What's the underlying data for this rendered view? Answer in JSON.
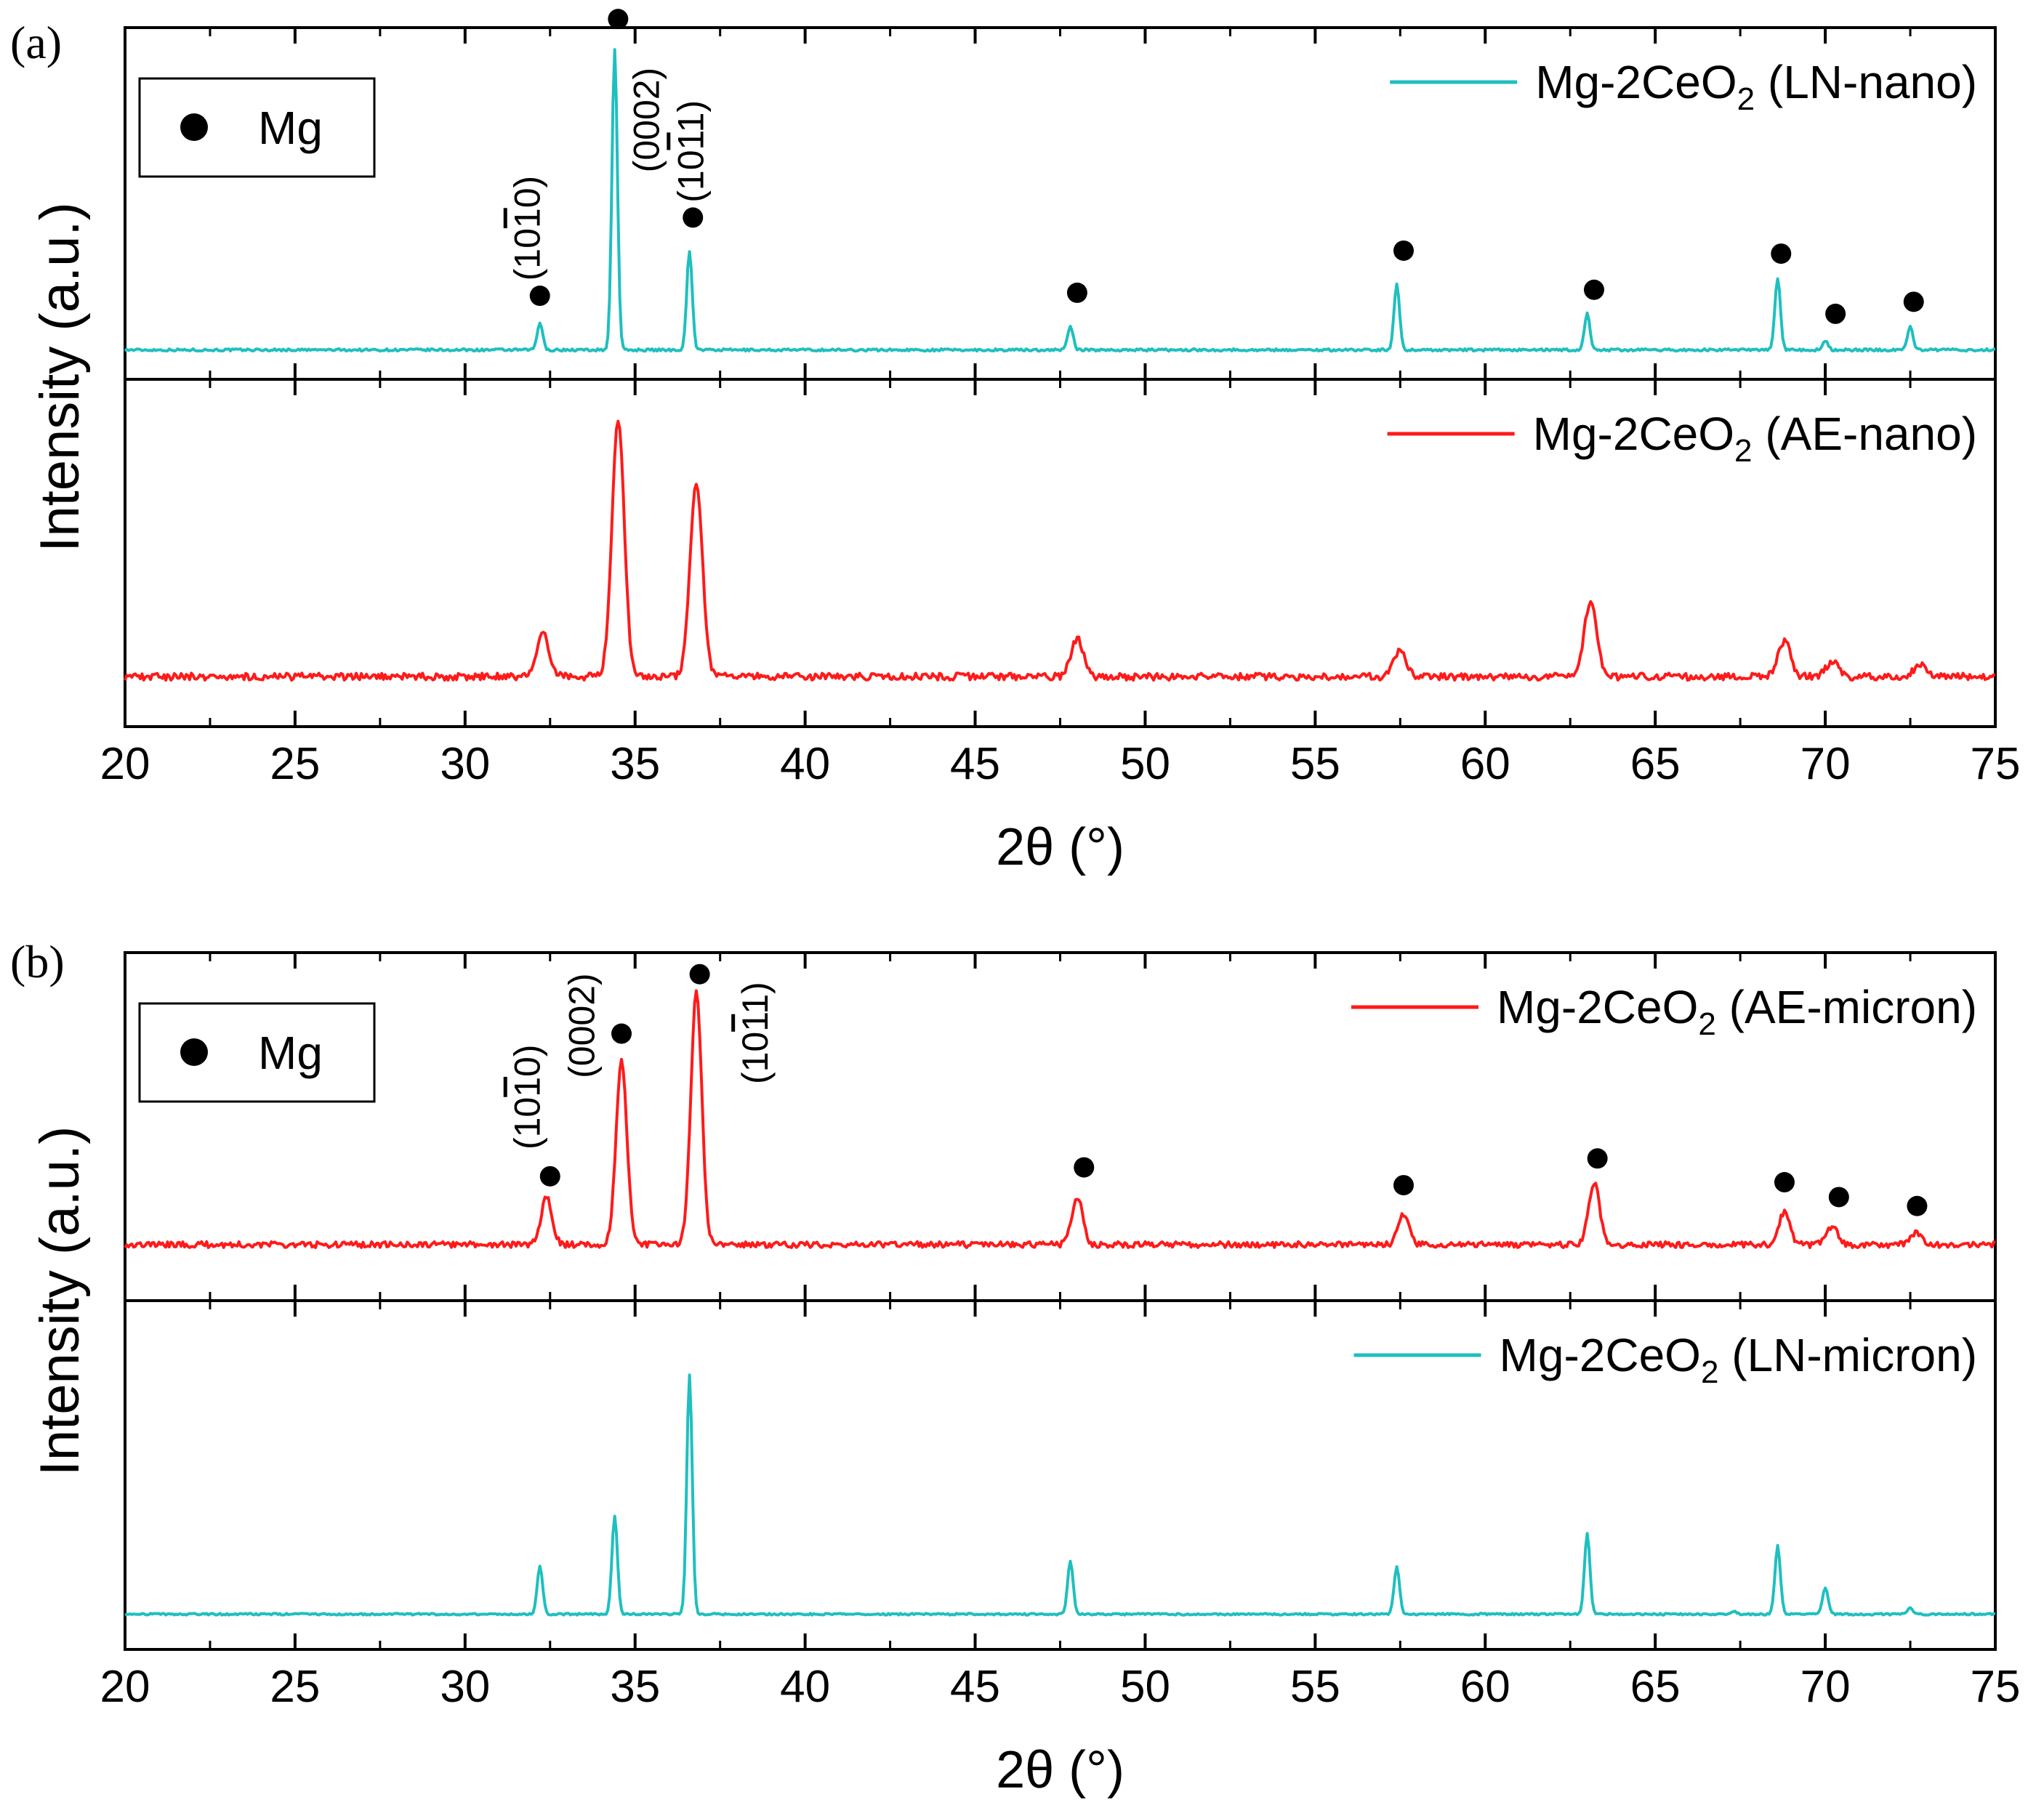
{
  "chart_data": [
    {
      "type": "line",
      "panel_label": "(a)",
      "xlabel": "2θ (°)",
      "ylabel": "Intensity (a.u.)",
      "xlim": [
        20,
        75
      ],
      "xticks": [
        20,
        25,
        30,
        35,
        40,
        45,
        50,
        55,
        60,
        65,
        70,
        75
      ],
      "legend_box": {
        "marker_label": "Mg"
      },
      "series": [
        {
          "name": "Mg-2CeO2 (LN-nano)",
          "legend_main": "Mg-2CeO",
          "legend_sub": "2",
          "legend_suffix": " (LN-nano)",
          "color": "#1fbfbf",
          "subplot": "top",
          "baseline": 0.03,
          "noise": 0.004,
          "width": 0.08,
          "peaks": [
            {
              "x": 32.2,
              "y": 0.09
            },
            {
              "x": 34.4,
              "y": 1.0
            },
            {
              "x": 36.6,
              "y": 0.33
            },
            {
              "x": 47.8,
              "y": 0.08
            },
            {
              "x": 57.4,
              "y": 0.22
            },
            {
              "x": 63.0,
              "y": 0.12
            },
            {
              "x": 68.6,
              "y": 0.24
            },
            {
              "x": 70.0,
              "y": 0.03
            },
            {
              "x": 72.5,
              "y": 0.08
            }
          ],
          "markers": [
            {
              "x": 32.2,
              "y": 0.21
            },
            {
              "x": 34.5,
              "y": 1.13
            },
            {
              "x": 36.7,
              "y": 0.47
            },
            {
              "x": 48.0,
              "y": 0.22
            },
            {
              "x": 57.6,
              "y": 0.36
            },
            {
              "x": 63.2,
              "y": 0.23
            },
            {
              "x": 68.7,
              "y": 0.35
            },
            {
              "x": 70.3,
              "y": 0.15
            },
            {
              "x": 72.6,
              "y": 0.19
            }
          ],
          "annotations": [
            {
              "text": "(10",
              "bar": "1",
              "tail": "0)",
              "x": 32.2,
              "y": 0.26
            },
            {
              "text": "(0002)",
              "bar": "",
              "tail": "",
              "x": 35.7,
              "y": 0.62
            },
            {
              "text": "(10",
              "bar": "1",
              "tail": "1)",
              "x": 37.0,
              "y": 0.52
            }
          ]
        },
        {
          "name": "Mg-2CeO2 (AE-nano)",
          "legend_main": "Mg-2CeO",
          "legend_sub": "2",
          "legend_suffix": " (AE-nano)",
          "color": "#ff1a1a",
          "subplot": "bottom",
          "baseline": 0.1,
          "noise": 0.012,
          "width": 0.18,
          "peaks": [
            {
              "x": 32.3,
              "y": 0.14
            },
            {
              "x": 34.5,
              "y": 0.87
            },
            {
              "x": 36.8,
              "y": 0.66
            },
            {
              "x": 48.0,
              "y": 0.13
            },
            {
              "x": 57.5,
              "y": 0.09
            },
            {
              "x": 63.1,
              "y": 0.26
            },
            {
              "x": 68.8,
              "y": 0.12
            },
            {
              "x": 70.2,
              "y": 0.05
            },
            {
              "x": 72.8,
              "y": 0.04
            }
          ]
        }
      ]
    },
    {
      "type": "line",
      "panel_label": "(b)",
      "xlabel": "2θ (°)",
      "ylabel": "Intensity (a.u.)",
      "xlim": [
        20,
        75
      ],
      "xticks": [
        20,
        25,
        30,
        35,
        40,
        45,
        50,
        55,
        60,
        65,
        70,
        75
      ],
      "legend_box": {
        "marker_label": "Mg"
      },
      "series": [
        {
          "name": "Mg-2CeO2 (AE-micron)",
          "legend_main": "Mg-2CeO",
          "legend_sub": "2",
          "legend_suffix": " (AE-micron)",
          "color": "#ff1a1a",
          "subplot": "top",
          "baseline": 0.12,
          "noise": 0.01,
          "width": 0.16,
          "peaks": [
            {
              "x": 32.4,
              "y": 0.16
            },
            {
              "x": 34.6,
              "y": 0.62
            },
            {
              "x": 36.8,
              "y": 0.85
            },
            {
              "x": 48.0,
              "y": 0.16
            },
            {
              "x": 57.6,
              "y": 0.1
            },
            {
              "x": 63.2,
              "y": 0.21
            },
            {
              "x": 68.8,
              "y": 0.11
            },
            {
              "x": 70.2,
              "y": 0.06
            },
            {
              "x": 72.7,
              "y": 0.04
            }
          ],
          "markers": [
            {
              "x": 32.5,
              "y": 0.35
            },
            {
              "x": 34.6,
              "y": 0.83
            },
            {
              "x": 36.9,
              "y": 1.03
            },
            {
              "x": 48.2,
              "y": 0.38
            },
            {
              "x": 57.6,
              "y": 0.32
            },
            {
              "x": 63.3,
              "y": 0.41
            },
            {
              "x": 68.8,
              "y": 0.33
            },
            {
              "x": 70.4,
              "y": 0.28
            },
            {
              "x": 72.7,
              "y": 0.25
            }
          ],
          "annotations": [
            {
              "text": "(10",
              "bar": "1",
              "tail": "0)",
              "x": 32.2,
              "y": 0.44
            },
            {
              "text": "(0002)",
              "bar": "",
              "tail": "",
              "x": 33.8,
              "y": 0.68
            },
            {
              "text": "(10",
              "bar": "1",
              "tail": "1)",
              "x": 38.9,
              "y": 0.66
            }
          ]
        },
        {
          "name": "Mg-2CeO2 (LN-micron)",
          "legend_main": "Mg-2CeO",
          "legend_sub": "2",
          "legend_suffix": " (LN-micron)",
          "color": "#1fbfbf",
          "subplot": "bottom",
          "baseline": 0.05,
          "noise": 0.003,
          "width": 0.08,
          "peaks": [
            {
              "x": 32.2,
              "y": 0.16
            },
            {
              "x": 34.4,
              "y": 0.33
            },
            {
              "x": 36.6,
              "y": 0.8
            },
            {
              "x": 47.8,
              "y": 0.18
            },
            {
              "x": 57.4,
              "y": 0.16
            },
            {
              "x": 63.0,
              "y": 0.27
            },
            {
              "x": 67.3,
              "y": 0.01
            },
            {
              "x": 68.6,
              "y": 0.23
            },
            {
              "x": 70.0,
              "y": 0.09
            },
            {
              "x": 72.5,
              "y": 0.02
            }
          ]
        }
      ]
    }
  ]
}
